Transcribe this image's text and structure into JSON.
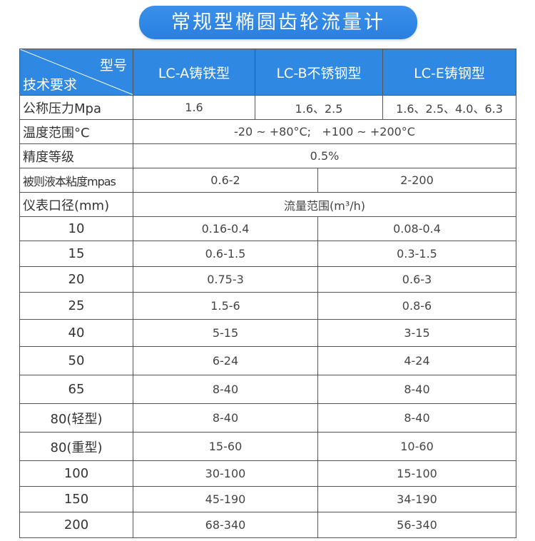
{
  "title": "常规型椭圆齿轮流量计",
  "header": {
    "corner_top": "型号",
    "corner_bottom": "技术要求",
    "models": [
      "LC-A铸铁型",
      "LC-B不锈钢型",
      "LC-E铸钢型"
    ]
  },
  "pressure": {
    "label": "公称压力Mpa",
    "values": [
      "1.6",
      "1.6、2.5",
      "1.6、2.5、4.0、6.3"
    ]
  },
  "temperature": {
    "label": "温度范围°C",
    "value": "-20 ~ +80°C;   +100 ~ +200°C"
  },
  "accuracy": {
    "label": "精度等级",
    "value": "0.5%"
  },
  "viscosity": {
    "label": "被则液本粘度mpas",
    "values": [
      "0.6-2",
      "2-200"
    ]
  },
  "flow_header": {
    "label": "仪表口径(mm)",
    "value": "流量范围(m³/h)"
  },
  "flow_rows": [
    {
      "size": "10",
      "a": "0.16-0.4",
      "b": "0.08-0.4"
    },
    {
      "size": "15",
      "a": "0.6-1.5",
      "b": "0.3-1.5"
    },
    {
      "size": "20",
      "a": "0.75-3",
      "b": "0.6-3"
    },
    {
      "size": "25",
      "a": "1.5-6",
      "b": "0.8-6"
    },
    {
      "size": "40",
      "a": "5-15",
      "b": "3-15"
    },
    {
      "size": "50",
      "a": "6-24",
      "b": "4-24"
    },
    {
      "size": "65",
      "a": "8-40",
      "b": "8-40"
    },
    {
      "size": "80(轻型)",
      "a": "8-40",
      "b": "8-40"
    },
    {
      "size": "80(重型)",
      "a": "15-60",
      "b": "10-60"
    },
    {
      "size": "100",
      "a": "30-100",
      "b": "15-100"
    },
    {
      "size": "150",
      "a": "45-190",
      "b": "34-190"
    },
    {
      "size": "200",
      "a": "68-340",
      "b": "56-340"
    }
  ]
}
